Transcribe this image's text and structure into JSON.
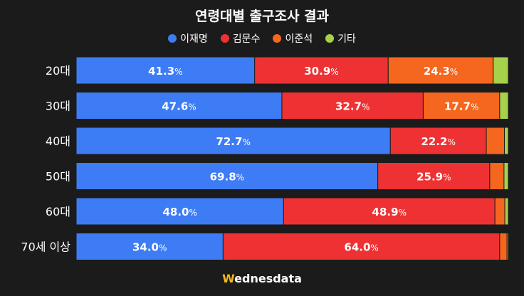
{
  "chart_data": {
    "type": "bar",
    "orientation": "horizontal",
    "stacked": true,
    "title": "연령대별 출구조사 결과",
    "categories": [
      "20대",
      "30대",
      "40대",
      "50대",
      "60대",
      "70세 이상"
    ],
    "series": [
      {
        "name": "이재명",
        "color": "#3d7cf5",
        "values": [
          41.3,
          47.6,
          72.7,
          69.8,
          48.0,
          34.0
        ]
      },
      {
        "name": "김문수",
        "color": "#ee3233",
        "values": [
          30.9,
          32.7,
          22.2,
          25.9,
          48.9,
          64.0
        ]
      },
      {
        "name": "이준석",
        "color": "#f5661e",
        "values": [
          24.3,
          17.7,
          4.2,
          3.3,
          2.3,
          1.7
        ]
      },
      {
        "name": "기타",
        "color": "#a5d24a",
        "values": [
          3.5,
          2.0,
          0.9,
          1.0,
          0.8,
          0.3
        ]
      }
    ],
    "value_suffix": "%",
    "labeled_series": [
      "이재명",
      "김문수",
      "이준석"
    ],
    "label_min_value": 10,
    "xlim": [
      0,
      100
    ],
    "legend_position": "top"
  },
  "logo": {
    "mark": "W",
    "rest": "ednesdata"
  }
}
